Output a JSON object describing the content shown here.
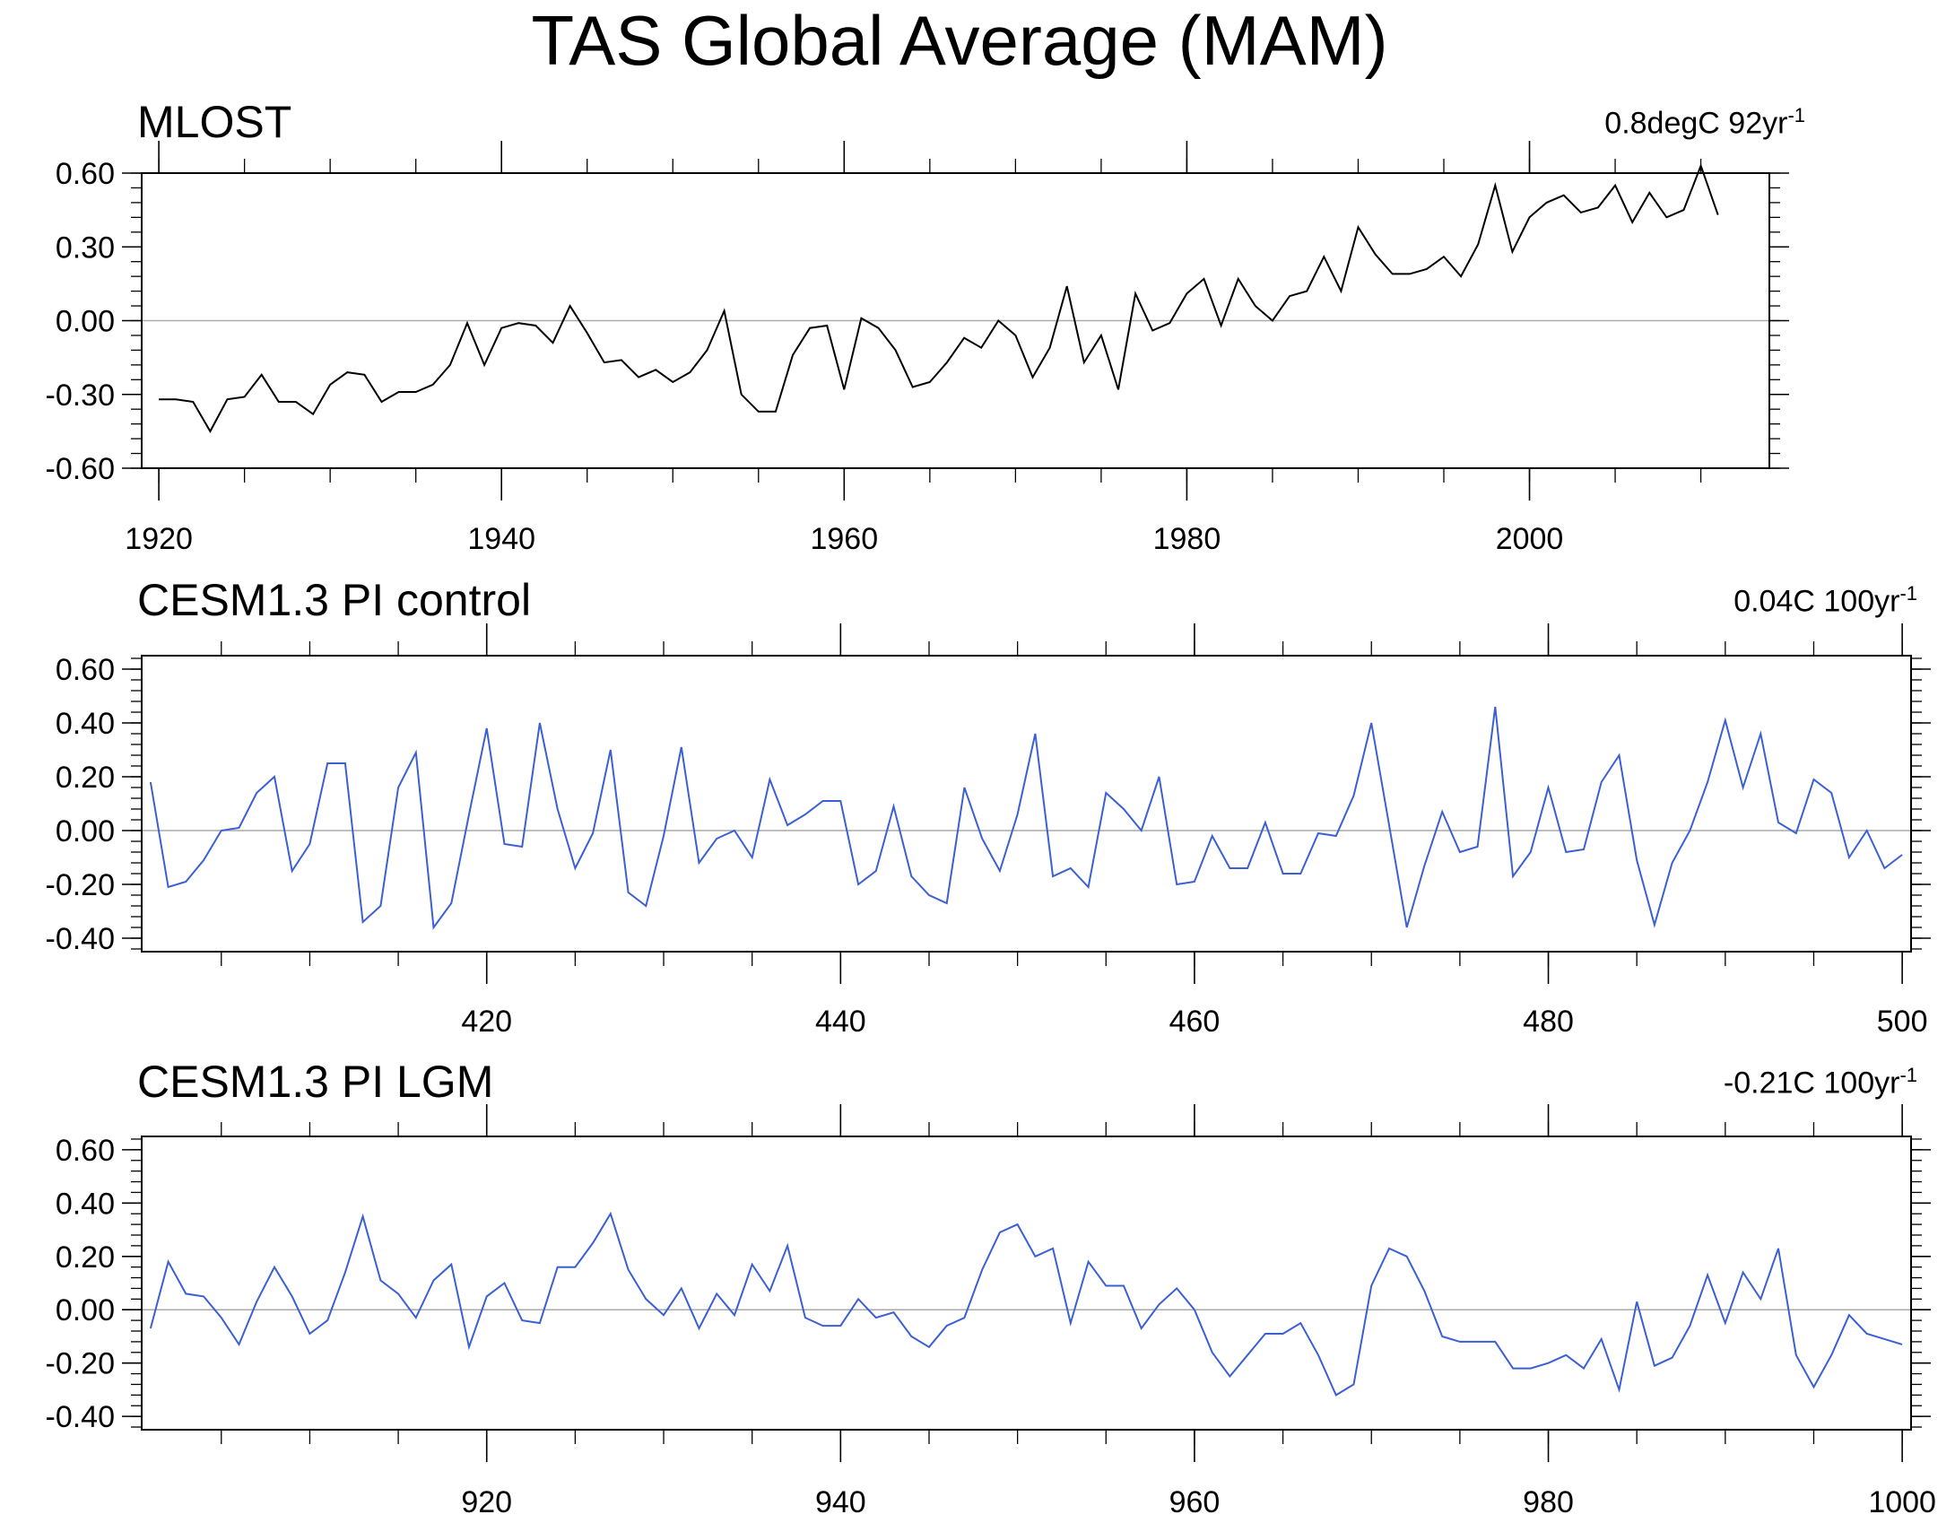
{
  "title": "TAS Global Average (MAM)",
  "chart_data": [
    {
      "type": "line",
      "title": "MLOST",
      "trend": {
        "value": "0.8degC 92yr",
        "exponent": "-1"
      },
      "line_color": "#000000",
      "xlim": [
        1919,
        2014
      ],
      "ylim": [
        -0.6,
        0.6
      ],
      "major_xticks": [
        1920,
        1940,
        1960,
        1980,
        2000
      ],
      "xtick_labels": [
        "1920",
        "1940",
        "1960",
        "1980",
        "2000"
      ],
      "minor_x_step": 5,
      "yticks": [
        0.6,
        0.3,
        0.0,
        -0.3,
        -0.6
      ],
      "ytick_labels": [
        "0.60",
        "0.30",
        "0.00",
        "-0.30",
        "-0.60"
      ],
      "minor_y_step": 0.06,
      "zero_line": true,
      "x_start": 1920,
      "x_step": 1,
      "values": [
        -0.32,
        -0.32,
        -0.33,
        -0.45,
        -0.32,
        -0.31,
        -0.22,
        -0.33,
        -0.33,
        -0.38,
        -0.26,
        -0.21,
        -0.22,
        -0.33,
        -0.29,
        -0.29,
        -0.26,
        -0.18,
        -0.01,
        -0.18,
        -0.03,
        -0.01,
        -0.02,
        -0.09,
        0.06,
        -0.05,
        -0.17,
        -0.16,
        -0.23,
        -0.2,
        -0.25,
        -0.21,
        -0.12,
        0.04,
        -0.3,
        -0.37,
        -0.37,
        -0.14,
        -0.03,
        -0.02,
        -0.28,
        0.01,
        -0.03,
        -0.12,
        -0.27,
        -0.25,
        -0.17,
        -0.07,
        -0.11,
        0.0,
        -0.06,
        -0.23,
        -0.11,
        0.14,
        -0.17,
        -0.06,
        -0.28,
        0.11,
        -0.04,
        -0.01,
        0.11,
        0.17,
        -0.02,
        0.17,
        0.06,
        0.0,
        0.1,
        0.12,
        0.26,
        0.12,
        0.38,
        0.27,
        0.19,
        0.19,
        0.21,
        0.26,
        0.18,
        0.31,
        0.55,
        0.28,
        0.42,
        0.48,
        0.51,
        0.44,
        0.46,
        0.55,
        0.4,
        0.52,
        0.42,
        0.45,
        0.63,
        0.43
      ]
    },
    {
      "type": "line",
      "title": "CESM1.3 PI control",
      "trend": {
        "value": "0.04C 100yr",
        "exponent": "-1"
      },
      "line_color": "#3b5fd4",
      "xlim": [
        400.5,
        500.5
      ],
      "ylim": [
        -0.45,
        0.65
      ],
      "major_xticks": [
        420,
        440,
        460,
        480,
        500
      ],
      "xtick_labels": [
        "420",
        "440",
        "460",
        "480",
        "500"
      ],
      "minor_x_step": 5,
      "yticks": [
        0.6,
        0.4,
        0.2,
        0.0,
        -0.2,
        -0.4
      ],
      "ytick_labels": [
        "0.60",
        "0.40",
        "0.20",
        "0.00",
        "-0.20",
        "-0.40"
      ],
      "minor_y_step": 0.04,
      "zero_line": true,
      "x_start": 401,
      "x_step": 1,
      "values": [
        0.18,
        -0.21,
        -0.19,
        -0.11,
        0.0,
        0.01,
        0.14,
        0.2,
        -0.15,
        -0.05,
        0.25,
        0.25,
        -0.34,
        -0.28,
        0.16,
        0.29,
        -0.36,
        -0.27,
        0.06,
        0.38,
        -0.05,
        -0.06,
        0.4,
        0.08,
        -0.14,
        -0.01,
        0.3,
        -0.23,
        -0.28,
        -0.02,
        0.31,
        -0.12,
        -0.03,
        0.0,
        -0.1,
        0.19,
        0.02,
        0.06,
        0.11,
        0.11,
        -0.2,
        -0.15,
        0.09,
        -0.17,
        -0.24,
        -0.27,
        0.16,
        -0.03,
        -0.15,
        0.06,
        0.36,
        -0.17,
        -0.14,
        -0.21,
        0.14,
        0.08,
        0.0,
        0.2,
        -0.2,
        -0.19,
        -0.02,
        -0.14,
        -0.14,
        0.03,
        -0.16,
        -0.16,
        -0.01,
        -0.02,
        0.13,
        0.4,
        0.02,
        -0.36,
        -0.13,
        0.07,
        -0.08,
        -0.06,
        0.46,
        -0.17,
        -0.08,
        0.16,
        -0.08,
        -0.07,
        0.18,
        0.28,
        -0.11,
        -0.35,
        -0.12,
        0.0,
        0.18,
        0.41,
        0.16,
        0.36,
        0.03,
        -0.01,
        0.19,
        0.14,
        -0.1,
        0.0,
        -0.14,
        -0.09
      ]
    },
    {
      "type": "line",
      "title": "CESM1.3 PI LGM",
      "trend": {
        "value": "-0.21C 100yr",
        "exponent": "-1"
      },
      "line_color": "#3b5fd4",
      "xlim": [
        900.5,
        1000.5
      ],
      "ylim": [
        -0.45,
        0.65
      ],
      "major_xticks": [
        920,
        940,
        960,
        980,
        1000
      ],
      "xtick_labels": [
        "920",
        "940",
        "960",
        "980",
        "1000"
      ],
      "minor_x_step": 5,
      "yticks": [
        0.6,
        0.4,
        0.2,
        0.0,
        -0.2,
        -0.4
      ],
      "ytick_labels": [
        "0.60",
        "0.40",
        "0.20",
        "0.00",
        "-0.20",
        "-0.40"
      ],
      "minor_y_step": 0.04,
      "zero_line": true,
      "x_start": 901,
      "x_step": 1,
      "values": [
        -0.07,
        0.18,
        0.06,
        0.05,
        -0.03,
        -0.13,
        0.03,
        0.16,
        0.05,
        -0.09,
        -0.04,
        0.14,
        0.35,
        0.11,
        0.06,
        -0.03,
        0.11,
        0.17,
        -0.14,
        0.05,
        0.1,
        -0.04,
        -0.05,
        0.16,
        0.16,
        0.25,
        0.36,
        0.15,
        0.04,
        -0.02,
        0.08,
        -0.07,
        0.06,
        -0.02,
        0.17,
        0.07,
        0.24,
        -0.03,
        -0.06,
        -0.06,
        0.04,
        -0.03,
        -0.01,
        -0.1,
        -0.14,
        -0.06,
        -0.03,
        0.15,
        0.29,
        0.32,
        0.2,
        0.23,
        -0.05,
        0.18,
        0.09,
        0.09,
        -0.07,
        0.02,
        0.08,
        0.0,
        -0.16,
        -0.25,
        -0.17,
        -0.09,
        -0.09,
        -0.05,
        -0.17,
        -0.32,
        -0.28,
        0.09,
        0.23,
        0.2,
        0.07,
        -0.1,
        -0.12,
        -0.12,
        -0.12,
        -0.22,
        -0.22,
        -0.2,
        -0.17,
        -0.22,
        -0.11,
        -0.3,
        0.03,
        -0.21,
        -0.18,
        -0.06,
        0.13,
        -0.05,
        0.14,
        0.04,
        0.23,
        -0.17,
        -0.29,
        -0.17,
        -0.02,
        -0.09,
        -0.11,
        -0.13
      ]
    }
  ]
}
